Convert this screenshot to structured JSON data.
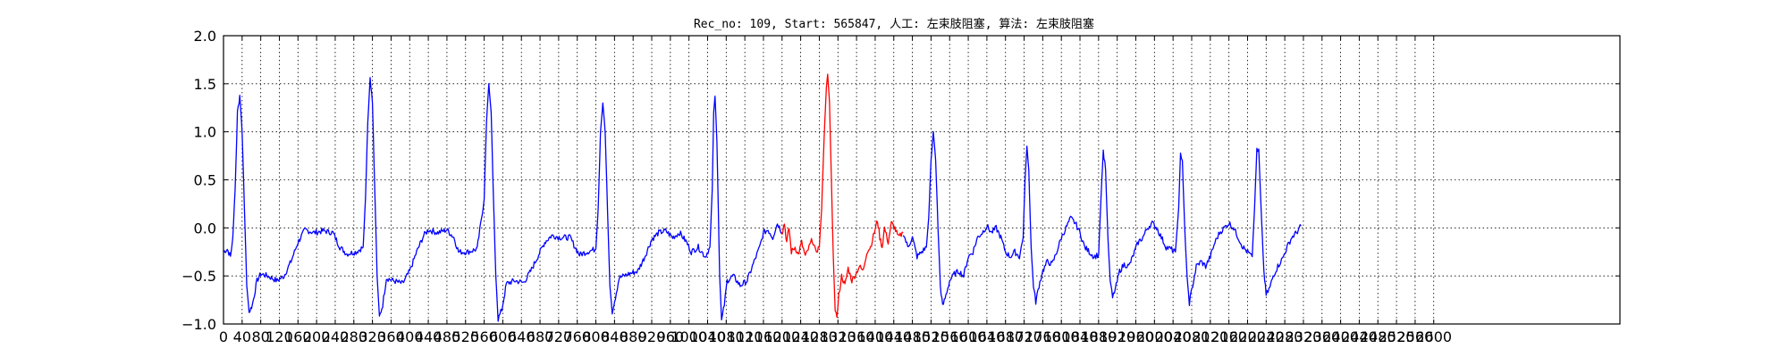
{
  "chart_data": {
    "type": "line",
    "title": "Rec_no: 109, Start: 565847, 人工: 左束肢阻塞, 算法: 左束肢阻塞",
    "xlabel": "",
    "ylabel": "",
    "xlim": [
      0,
      3000
    ],
    "ylim": [
      -1.0,
      2.0
    ],
    "grid": true,
    "x_ticks": [
      0,
      40,
      80,
      120,
      160,
      200,
      240,
      280,
      320,
      360,
      400,
      440,
      480,
      520,
      560,
      600,
      640,
      680,
      720,
      760,
      800,
      840,
      880,
      920,
      960,
      1000,
      1040,
      1080,
      1120,
      1160,
      1200,
      1240,
      1280,
      1320,
      1360,
      1400,
      1440,
      1480,
      1520,
      1560,
      1600,
      1640,
      1680,
      1720,
      1760,
      1800,
      1840,
      1880,
      1920,
      1960,
      2000,
      2040,
      2080,
      2120,
      2160,
      2200,
      2240,
      2280,
      2320,
      2360,
      2400,
      2440,
      2480,
      2520,
      2560,
      2600
    ],
    "y_ticks": [
      -1.0,
      -0.5,
      0.0,
      0.5,
      1.0,
      1.5,
      2.0
    ],
    "y_tick_labels": [
      "−1.0",
      "−0.5",
      "0.0",
      "0.5",
      "1.0",
      "1.5",
      "2.0"
    ],
    "colors": {
      "normal": "#0000ff",
      "highlight": "#ff0000",
      "grid": "#000000",
      "axis": "#000000"
    },
    "highlight_range": [
      1200,
      1460
    ],
    "series": [
      {
        "color": "#0000ff",
        "points": [
          [
            0,
            -0.25
          ],
          [
            8,
            -0.22
          ],
          [
            15,
            -0.3
          ],
          [
            20,
            -0.1
          ],
          [
            25,
            0.4
          ],
          [
            30,
            1.2
          ],
          [
            35,
            1.38
          ],
          [
            40,
            1.0
          ],
          [
            45,
            0.2
          ],
          [
            50,
            -0.6
          ],
          [
            55,
            -0.88
          ],
          [
            62,
            -0.8
          ],
          [
            72,
            -0.55
          ],
          [
            80,
            -0.48
          ],
          [
            95,
            -0.5
          ],
          [
            115,
            -0.55
          ],
          [
            130,
            -0.5
          ],
          [
            145,
            -0.35
          ],
          [
            160,
            -0.15
          ],
          [
            175,
            -0.02
          ],
          [
            195,
            -0.05
          ],
          [
            215,
            -0.03
          ],
          [
            235,
            -0.05
          ],
          [
            250,
            -0.2
          ],
          [
            265,
            -0.27
          ],
          [
            285,
            -0.25
          ],
          [
            300,
            -0.2
          ],
          [
            305,
            0.3
          ],
          [
            310,
            1.1
          ],
          [
            315,
            1.55
          ],
          [
            320,
            1.3
          ],
          [
            325,
            0.4
          ],
          [
            330,
            -0.5
          ],
          [
            335,
            -0.93
          ],
          [
            342,
            -0.8
          ],
          [
            350,
            -0.52
          ],
          [
            365,
            -0.55
          ],
          [
            385,
            -0.58
          ],
          [
            400,
            -0.45
          ],
          [
            415,
            -0.25
          ],
          [
            430,
            -0.08
          ],
          [
            440,
            -0.02
          ],
          [
            460,
            -0.05
          ],
          [
            480,
            -0.02
          ],
          [
            495,
            -0.1
          ],
          [
            505,
            -0.25
          ],
          [
            525,
            -0.25
          ],
          [
            545,
            -0.22
          ],
          [
            560,
            0.3
          ],
          [
            565,
            1.1
          ],
          [
            570,
            1.5
          ],
          [
            575,
            1.2
          ],
          [
            580,
            0.3
          ],
          [
            585,
            -0.5
          ],
          [
            590,
            -0.95
          ],
          [
            598,
            -0.85
          ],
          [
            608,
            -0.58
          ],
          [
            625,
            -0.55
          ],
          [
            645,
            -0.57
          ],
          [
            660,
            -0.45
          ],
          [
            675,
            -0.3
          ],
          [
            690,
            -0.15
          ],
          [
            705,
            -0.08
          ],
          [
            725,
            -0.1
          ],
          [
            745,
            -0.1
          ],
          [
            755,
            -0.2
          ],
          [
            765,
            -0.28
          ],
          [
            780,
            -0.25
          ],
          [
            800,
            -0.22
          ],
          [
            805,
            0.2
          ],
          [
            810,
            1.0
          ],
          [
            815,
            1.3
          ],
          [
            820,
            1.0
          ],
          [
            825,
            0.2
          ],
          [
            830,
            -0.6
          ],
          [
            835,
            -0.87
          ],
          [
            842,
            -0.72
          ],
          [
            850,
            -0.52
          ],
          [
            870,
            -0.48
          ],
          [
            890,
            -0.45
          ],
          [
            905,
            -0.3
          ],
          [
            920,
            -0.12
          ],
          [
            935,
            -0.05
          ],
          [
            950,
            -0.03
          ],
          [
            965,
            -0.1
          ],
          [
            980,
            -0.05
          ],
          [
            995,
            -0.15
          ],
          [
            1005,
            -0.25
          ],
          [
            1020,
            -0.2
          ],
          [
            1035,
            -0.3
          ],
          [
            1045,
            -0.2
          ],
          [
            1050,
            0.4
          ],
          [
            1053,
            1.2
          ],
          [
            1056,
            1.37
          ],
          [
            1060,
            0.9
          ],
          [
            1063,
            0.2
          ],
          [
            1066,
            -0.5
          ],
          [
            1070,
            -0.97
          ],
          [
            1076,
            -0.8
          ],
          [
            1082,
            -0.55
          ],
          [
            1095,
            -0.5
          ],
          [
            1110,
            -0.6
          ],
          [
            1125,
            -0.55
          ],
          [
            1140,
            -0.35
          ],
          [
            1152,
            -0.2
          ],
          [
            1160,
            -0.05
          ],
          [
            1170,
            -0.02
          ],
          [
            1180,
            -0.1
          ],
          [
            1190,
            0.05
          ],
          [
            1200,
            -0.05
          ]
        ]
      },
      {
        "color": "#ff0000",
        "points": [
          [
            1200,
            -0.05
          ],
          [
            1205,
            0.05
          ],
          [
            1210,
            -0.15
          ],
          [
            1215,
            0.0
          ],
          [
            1220,
            -0.25
          ],
          [
            1228,
            -0.2
          ],
          [
            1235,
            -0.28
          ],
          [
            1242,
            -0.15
          ],
          [
            1250,
            -0.3
          ],
          [
            1258,
            -0.2
          ],
          [
            1265,
            -0.12
          ],
          [
            1272,
            -0.25
          ],
          [
            1280,
            -0.2
          ],
          [
            1285,
            0.2
          ],
          [
            1290,
            0.9
          ],
          [
            1295,
            1.45
          ],
          [
            1298,
            1.6
          ],
          [
            1302,
            1.3
          ],
          [
            1306,
            0.5
          ],
          [
            1310,
            -0.3
          ],
          [
            1314,
            -0.85
          ],
          [
            1318,
            -0.93
          ],
          [
            1322,
            -0.7
          ],
          [
            1328,
            -0.5
          ],
          [
            1335,
            -0.6
          ],
          [
            1342,
            -0.42
          ],
          [
            1350,
            -0.55
          ],
          [
            1358,
            -0.48
          ],
          [
            1366,
            -0.4
          ],
          [
            1374,
            -0.45
          ],
          [
            1382,
            -0.25
          ],
          [
            1390,
            -0.2
          ],
          [
            1398,
            -0.05
          ],
          [
            1405,
            0.08
          ],
          [
            1410,
            -0.1
          ],
          [
            1415,
            -0.2
          ],
          [
            1420,
            0.0
          ],
          [
            1428,
            -0.15
          ],
          [
            1435,
            0.05
          ],
          [
            1442,
            0.0
          ],
          [
            1450,
            -0.1
          ],
          [
            1460,
            -0.05
          ]
        ]
      },
      {
        "color": "#0000ff",
        "points": [
          [
            1460,
            -0.05
          ],
          [
            1470,
            -0.2
          ],
          [
            1480,
            -0.1
          ],
          [
            1490,
            -0.3
          ],
          [
            1500,
            -0.25
          ],
          [
            1510,
            -0.2
          ],
          [
            1515,
            0.1
          ],
          [
            1520,
            0.7
          ],
          [
            1525,
            1.0
          ],
          [
            1530,
            0.7
          ],
          [
            1535,
            0.0
          ],
          [
            1540,
            -0.6
          ],
          [
            1545,
            -0.82
          ],
          [
            1552,
            -0.7
          ],
          [
            1560,
            -0.55
          ],
          [
            1570,
            -0.48
          ],
          [
            1580,
            -0.45
          ],
          [
            1590,
            -0.5
          ],
          [
            1600,
            -0.3
          ],
          [
            1610,
            -0.25
          ],
          [
            1620,
            -0.1
          ],
          [
            1630,
            -0.05
          ],
          [
            1640,
            0.02
          ],
          [
            1650,
            -0.05
          ],
          [
            1660,
            0.0
          ],
          [
            1670,
            -0.1
          ],
          [
            1680,
            -0.25
          ],
          [
            1690,
            -0.3
          ],
          [
            1700,
            -0.25
          ],
          [
            1710,
            -0.3
          ],
          [
            1718,
            -0.1
          ],
          [
            1722,
            0.5
          ],
          [
            1726,
            0.85
          ],
          [
            1730,
            0.6
          ],
          [
            1735,
            -0.2
          ],
          [
            1740,
            -0.6
          ],
          [
            1745,
            -0.77
          ],
          [
            1752,
            -0.6
          ],
          [
            1760,
            -0.45
          ],
          [
            1770,
            -0.35
          ],
          [
            1780,
            -0.38
          ],
          [
            1790,
            -0.25
          ],
          [
            1800,
            -0.1
          ],
          [
            1810,
            0.0
          ],
          [
            1820,
            0.1
          ],
          [
            1830,
            0.05
          ],
          [
            1840,
            -0.05
          ],
          [
            1850,
            -0.2
          ],
          [
            1860,
            -0.25
          ],
          [
            1870,
            -0.3
          ],
          [
            1880,
            -0.28
          ],
          [
            1885,
            0.3
          ],
          [
            1890,
            0.8
          ],
          [
            1895,
            0.6
          ],
          [
            1900,
            -0.1
          ],
          [
            1905,
            -0.55
          ],
          [
            1910,
            -0.73
          ],
          [
            1918,
            -0.6
          ],
          [
            1925,
            -0.45
          ],
          [
            1935,
            -0.38
          ],
          [
            1945,
            -0.4
          ],
          [
            1955,
            -0.28
          ],
          [
            1965,
            -0.15
          ],
          [
            1975,
            -0.1
          ],
          [
            1985,
            0.0
          ],
          [
            1995,
            0.05
          ],
          [
            2005,
            0.0
          ],
          [
            2015,
            -0.1
          ],
          [
            2025,
            -0.2
          ],
          [
            2035,
            -0.22
          ],
          [
            2045,
            -0.25
          ],
          [
            2052,
            0.2
          ],
          [
            2056,
            0.75
          ],
          [
            2060,
            0.7
          ],
          [
            2065,
            0.0
          ],
          [
            2070,
            -0.5
          ],
          [
            2075,
            -0.78
          ],
          [
            2082,
            -0.6
          ],
          [
            2090,
            -0.4
          ],
          [
            2100,
            -0.35
          ],
          [
            2110,
            -0.4
          ],
          [
            2120,
            -0.3
          ],
          [
            2130,
            -0.15
          ],
          [
            2140,
            -0.05
          ],
          [
            2150,
            0.0
          ],
          [
            2160,
            0.05
          ],
          [
            2170,
            0.0
          ],
          [
            2180,
            -0.1
          ],
          [
            2190,
            -0.2
          ],
          [
            2200,
            -0.25
          ],
          [
            2210,
            -0.3
          ],
          [
            2215,
            0.2
          ],
          [
            2220,
            0.8
          ],
          [
            2224,
            0.82
          ],
          [
            2230,
            0.1
          ],
          [
            2235,
            -0.45
          ],
          [
            2240,
            -0.7
          ],
          [
            2248,
            -0.62
          ],
          [
            2255,
            -0.5
          ],
          [
            2265,
            -0.4
          ],
          [
            2275,
            -0.32
          ],
          [
            2285,
            -0.2
          ],
          [
            2295,
            -0.1
          ],
          [
            2305,
            -0.05
          ],
          [
            2315,
            0.02
          ]
        ]
      }
    ]
  }
}
